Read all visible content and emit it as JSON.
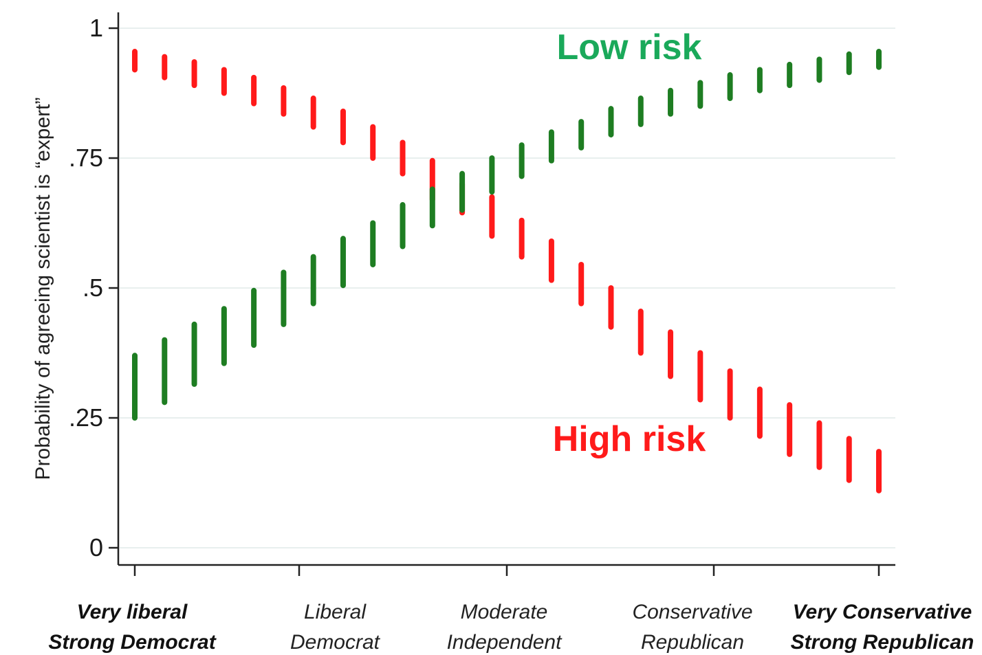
{
  "chart_data": {
    "type": "range_bar",
    "ylabel": "Probability of agreeing scientist is “expert”",
    "xlabel": "",
    "ylim": [
      0,
      1
    ],
    "yticks": [
      {
        "value": 0,
        "label": "0"
      },
      {
        "value": 0.25,
        "label": ".25"
      },
      {
        "value": 0.5,
        "label": ".5"
      },
      {
        "value": 0.75,
        "label": ".75"
      },
      {
        "value": 1,
        "label": "1"
      }
    ],
    "grid": true,
    "x_positions": [
      1,
      26
    ],
    "x_categories": [
      {
        "x": 1,
        "line1": "Very liberal",
        "line2": "Strong Democrat",
        "bold": true
      },
      {
        "x": 6.5,
        "line1": "Liberal",
        "line2": "Democrat",
        "bold": false
      },
      {
        "x": 13.5,
        "line1": "Moderate",
        "line2": "Independent",
        "bold": false
      },
      {
        "x": 20.5,
        "line1": "Conservative",
        "line2": "Republican",
        "bold": false
      },
      {
        "x": 26,
        "line1": "Very Conservative",
        "line2": "Strong Republican",
        "bold": true
      }
    ],
    "series": [
      {
        "name": "Low risk",
        "color": "#1e7d22",
        "label_color": "#1aa95a",
        "x": [
          1,
          2,
          3,
          4,
          5,
          6,
          7,
          8,
          9,
          10,
          11,
          12,
          13,
          14,
          15,
          16,
          17,
          18,
          19,
          20,
          21,
          22,
          23,
          24,
          25,
          26
        ],
        "lower": [
          0.25,
          0.28,
          0.315,
          0.355,
          0.39,
          0.43,
          0.47,
          0.505,
          0.545,
          0.58,
          0.62,
          0.65,
          0.685,
          0.715,
          0.745,
          0.77,
          0.795,
          0.815,
          0.835,
          0.85,
          0.865,
          0.88,
          0.89,
          0.9,
          0.915,
          0.925
        ],
        "upper": [
          0.37,
          0.4,
          0.43,
          0.46,
          0.495,
          0.53,
          0.56,
          0.595,
          0.625,
          0.66,
          0.69,
          0.72,
          0.75,
          0.775,
          0.8,
          0.82,
          0.845,
          0.865,
          0.88,
          0.895,
          0.91,
          0.92,
          0.93,
          0.94,
          0.95,
          0.955
        ]
      },
      {
        "name": "High risk",
        "color": "#ff1a1a",
        "label_color": "#ff1a1a",
        "x": [
          1,
          2,
          3,
          4,
          5,
          6,
          7,
          8,
          9,
          10,
          11,
          12,
          13,
          14,
          15,
          16,
          17,
          18,
          19,
          20,
          21,
          22,
          23,
          24,
          25,
          26
        ],
        "lower": [
          0.92,
          0.905,
          0.89,
          0.875,
          0.855,
          0.835,
          0.81,
          0.78,
          0.75,
          0.72,
          0.67,
          0.645,
          0.6,
          0.56,
          0.515,
          0.47,
          0.425,
          0.375,
          0.33,
          0.285,
          0.25,
          0.215,
          0.18,
          0.155,
          0.13,
          0.11
        ],
        "upper": [
          0.955,
          0.945,
          0.935,
          0.92,
          0.905,
          0.885,
          0.865,
          0.84,
          0.81,
          0.78,
          0.745,
          0.7,
          0.675,
          0.63,
          0.59,
          0.545,
          0.5,
          0.455,
          0.415,
          0.375,
          0.34,
          0.305,
          0.275,
          0.24,
          0.21,
          0.185
        ]
      }
    ],
    "annotations": [
      {
        "text": "Low risk",
        "series": 0
      },
      {
        "text": "High risk",
        "series": 1
      }
    ]
  }
}
